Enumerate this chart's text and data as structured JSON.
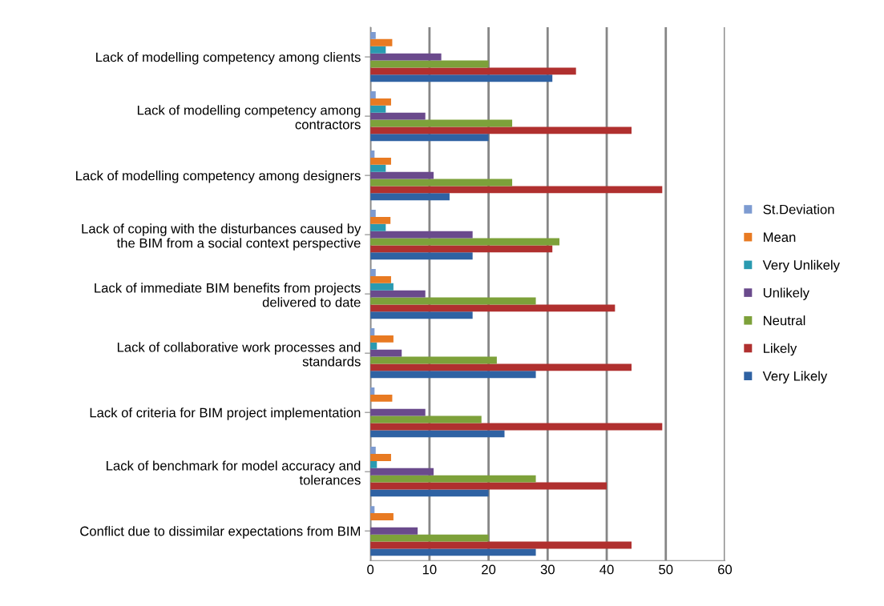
{
  "chart_data": {
    "type": "bar",
    "orientation": "horizontal",
    "categories": [
      "Lack of modelling competency among clients",
      "Lack of modelling competency among\ncontractors",
      "Lack of modelling competency among designers",
      "Lack of coping with the disturbances caused by\nthe BIM from a social context perspective",
      "Lack of immediate BIM benefits from projects\ndelivered to date",
      "Lack of collaborative work processes and\nstandards",
      "Lack of criteria for BIM project implementation",
      "Lack of benchmark for model accuracy and\ntolerances",
      "Conflict due to dissimilar expectations from BIM"
    ],
    "series": [
      {
        "name": "Very Likely",
        "color": "#2f62a3",
        "values": [
          30.8,
          20,
          13.4,
          17.3,
          17.3,
          28,
          22.7,
          20,
          28
        ]
      },
      {
        "name": "Likely",
        "color": "#b0302f",
        "values": [
          34.8,
          44.2,
          49.4,
          30.8,
          41.4,
          44.2,
          49.4,
          40,
          44.2
        ]
      },
      {
        "name": "Neutral",
        "color": "#7da13a",
        "values": [
          20,
          24,
          24,
          32,
          28,
          21.4,
          18.8,
          28,
          20
        ]
      },
      {
        "name": "Unlikely",
        "color": "#6a4a8c",
        "values": [
          12,
          9.3,
          10.7,
          17.3,
          9.3,
          5.3,
          9.3,
          10.7,
          8
        ]
      },
      {
        "name": "Very Unlikely",
        "color": "#2a9ab0",
        "values": [
          2.6,
          2.6,
          2.6,
          2.6,
          3.9,
          1.1,
          0,
          1.1,
          0
        ]
      },
      {
        "name": "Mean",
        "color": "#e87a22",
        "values": [
          3.7,
          3.5,
          3.5,
          3.4,
          3.5,
          3.9,
          3.7,
          3.5,
          3.9
        ]
      },
      {
        "name": "St.Deviation",
        "color": "#7d9bd1",
        "values": [
          0.9,
          0.9,
          0.7,
          0.9,
          0.9,
          0.7,
          0.7,
          0.9,
          0.7
        ]
      }
    ],
    "xlim": [
      0,
      60
    ],
    "xticks": [
      0,
      10,
      20,
      30,
      40,
      50,
      60
    ],
    "grid": "x",
    "legend": "right"
  }
}
